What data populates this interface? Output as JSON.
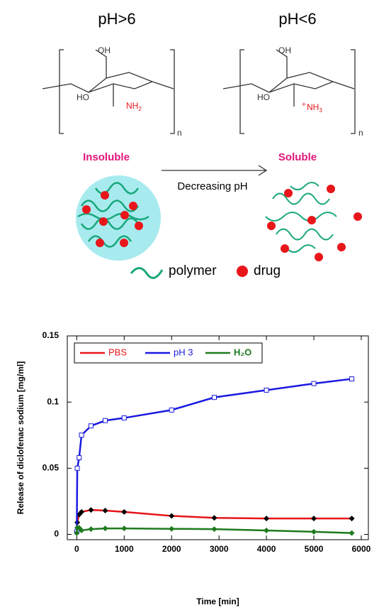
{
  "diagram": {
    "left_ph": "pH>6",
    "right_ph": "pH<6",
    "oh": "OH",
    "ho": "HO",
    "n": "n",
    "left_amine": [
      "NH",
      "2"
    ],
    "right_amine": [
      "NH",
      "3"
    ],
    "plus": "+",
    "left_state": "Insoluble",
    "right_state": "Soluble",
    "arrow_label": "Decreasing pH",
    "legend": [
      "polymer",
      "drug"
    ]
  },
  "chart_data": {
    "type": "line",
    "x_label": "Time [min]",
    "y_label": "Release of diclofenac sodium [mg/ml]",
    "x": [
      0,
      10,
      50,
      100,
      300,
      600,
      1000,
      2000,
      2900,
      4000,
      5000,
      5800
    ],
    "series": [
      {
        "name": "PBS",
        "color": "#e8161a",
        "values": [
          0.002,
          0.009,
          0.015,
          0.017,
          0.0185,
          0.018,
          0.017,
          0.014,
          0.0125,
          0.012,
          0.012,
          0.012
        ]
      },
      {
        "name": "pH 3",
        "color": "#1a1ae0",
        "values": [
          0.002,
          0.05,
          0.058,
          0.075,
          0.082,
          0.086,
          0.088,
          0.094,
          0.1035,
          0.109,
          0.114,
          0.1175
        ]
      },
      {
        "name": "H₂O",
        "color": "#1e7a1e",
        "values": [
          0.001,
          0.005,
          0.005,
          0.003,
          0.004,
          0.0045,
          0.0045,
          0.0042,
          0.004,
          0.003,
          0.002,
          0.001
        ]
      }
    ],
    "xlim": [
      -200,
      6150
    ],
    "ylim": [
      -0.004,
      0.15
    ],
    "xticks": [
      0,
      1000,
      2000,
      3000,
      4000,
      5000,
      6000
    ],
    "yticks": [
      0,
      0.05,
      0.1,
      0.15
    ],
    "legend": "upper left"
  }
}
